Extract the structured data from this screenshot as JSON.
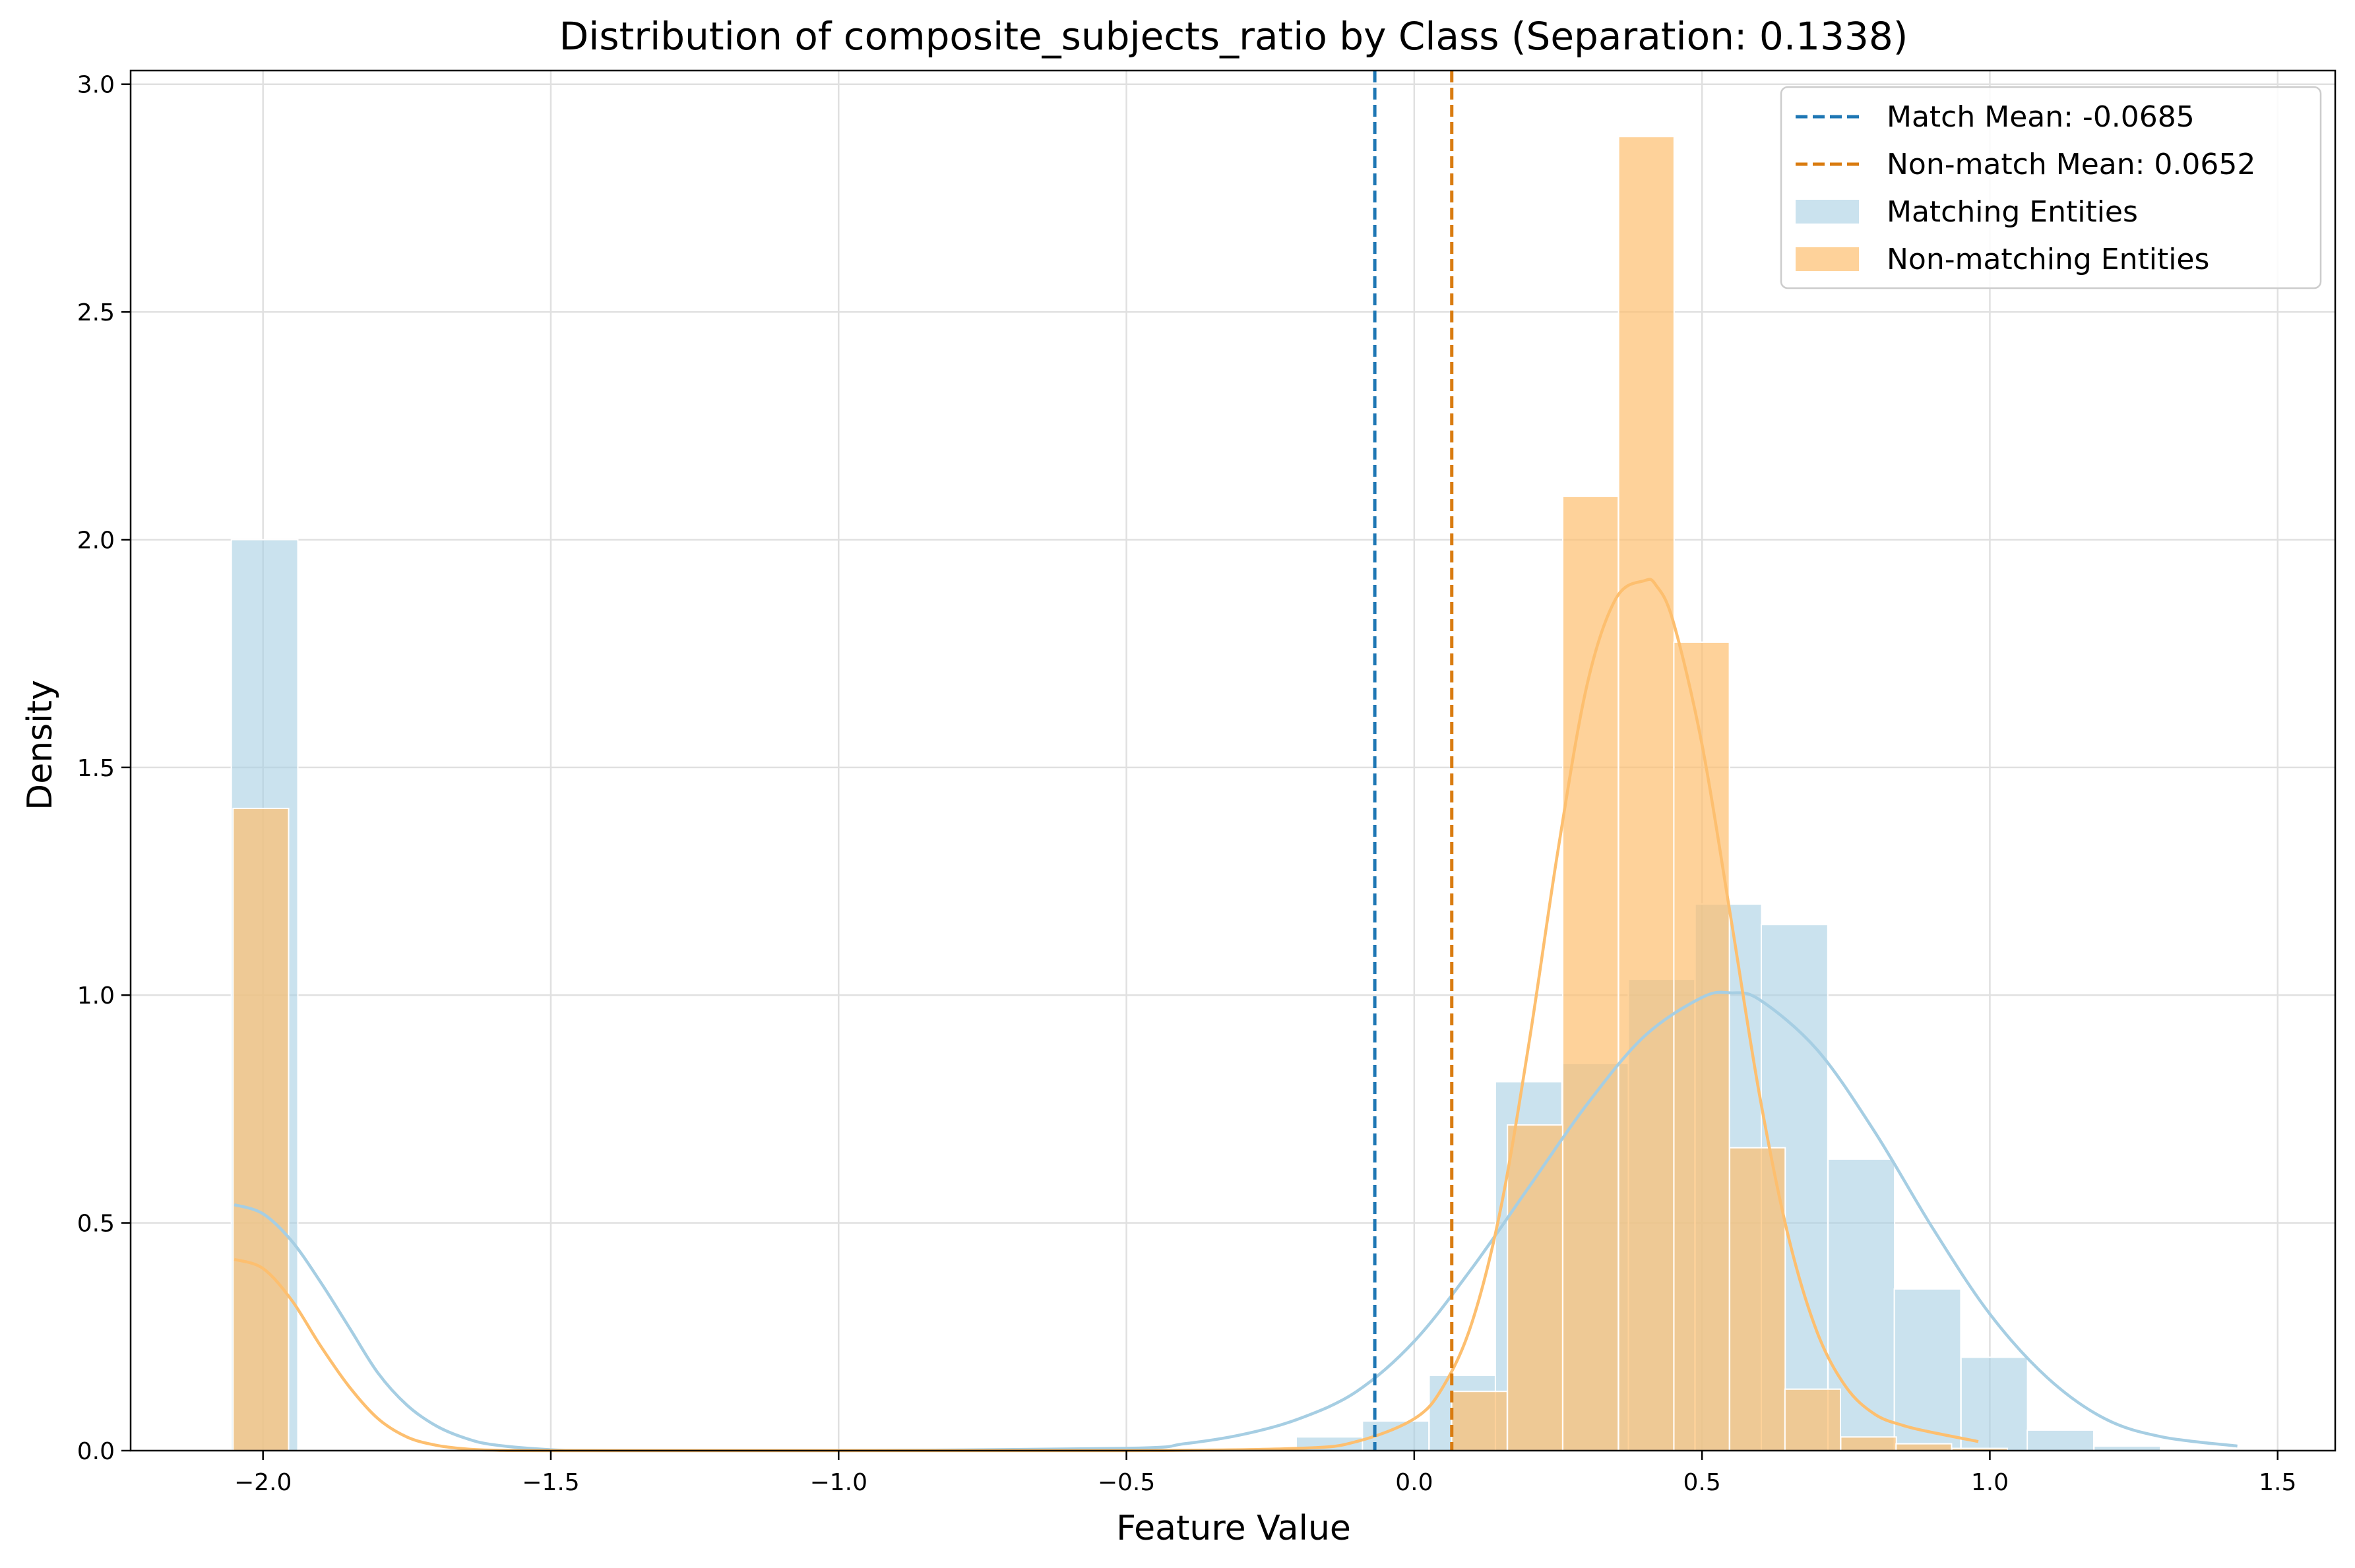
{
  "chart_data": {
    "type": "bar",
    "title": "Distribution of composite_subjects_ratio by Class (Separation: 0.1338)",
    "xlabel": "Feature Value",
    "ylabel": "Density",
    "xlim": [
      -2.23,
      1.6
    ],
    "ylim": [
      0,
      3.03
    ],
    "x_ticks": [
      -2.0,
      -1.5,
      -1.0,
      -0.5,
      0.0,
      0.5,
      1.0,
      1.5
    ],
    "x_tick_labels": [
      "−2.0",
      "−1.5",
      "−1.0",
      "−0.5",
      "0.0",
      "0.5",
      "1.0",
      "1.5"
    ],
    "y_ticks": [
      0.0,
      0.5,
      1.0,
      1.5,
      2.0,
      2.5,
      3.0
    ],
    "y_tick_labels": [
      "0.0",
      "0.5",
      "1.0",
      "1.5",
      "2.0",
      "2.5",
      "3.0"
    ],
    "grid": true,
    "legend_position": "top-right",
    "legend": [
      {
        "label": "Match Mean: -0.0685",
        "kind": "dashed-line",
        "color": "#1f77b4"
      },
      {
        "label": "Non-match Mean: 0.0652",
        "kind": "dashed-line",
        "color": "#d97b0f"
      },
      {
        "label": "Matching Entities",
        "kind": "patch",
        "color": "#a6cee3"
      },
      {
        "label": "Non-matching Entities",
        "kind": "patch",
        "color": "#fdbf6f"
      }
    ],
    "mean_lines": [
      {
        "name": "Match Mean",
        "x": -0.0685,
        "color": "#1f77b4"
      },
      {
        "name": "Non-match Mean",
        "x": 0.0652,
        "color": "#d97b0f"
      }
    ],
    "series": [
      {
        "name": "Matching Entities",
        "color": "#a6cee3",
        "bin_width": 0.1155,
        "bins": [
          {
            "x0": -2.055,
            "value": 2.0
          },
          {
            "x0": -0.205,
            "value": 0.03
          },
          {
            "x0": -0.09,
            "value": 0.065
          },
          {
            "x0": 0.026,
            "value": 0.165
          },
          {
            "x0": 0.141,
            "value": 0.81
          },
          {
            "x0": 0.257,
            "value": 0.85
          },
          {
            "x0": 0.372,
            "value": 1.035
          },
          {
            "x0": 0.488,
            "value": 1.2
          },
          {
            "x0": 0.603,
            "value": 1.155
          },
          {
            "x0": 0.719,
            "value": 0.64
          },
          {
            "x0": 0.834,
            "value": 0.355
          },
          {
            "x0": 0.95,
            "value": 0.205
          },
          {
            "x0": 1.065,
            "value": 0.045
          },
          {
            "x0": 1.181,
            "value": 0.01
          }
        ],
        "kde": {
          "x": [
            -2.05,
            -2.0,
            -1.95,
            -1.9,
            -1.85,
            -1.8,
            -1.75,
            -1.7,
            -1.65,
            -1.6,
            -1.5,
            -1.4,
            -1.0,
            -0.5,
            -0.4,
            -0.3,
            -0.2,
            -0.1,
            0.0,
            0.1,
            0.2,
            0.3,
            0.4,
            0.5,
            0.55,
            0.6,
            0.7,
            0.8,
            0.9,
            1.0,
            1.1,
            1.2,
            1.3,
            1.43
          ],
          "y": [
            0.54,
            0.52,
            0.46,
            0.37,
            0.27,
            0.17,
            0.1,
            0.055,
            0.028,
            0.013,
            0.002,
            0.0,
            0.0,
            0.005,
            0.015,
            0.035,
            0.07,
            0.13,
            0.24,
            0.4,
            0.58,
            0.76,
            0.91,
            0.995,
            1.005,
            0.99,
            0.88,
            0.7,
            0.49,
            0.3,
            0.16,
            0.07,
            0.03,
            0.01
          ]
        }
      },
      {
        "name": "Non-matching Entities",
        "color": "#fdbf6f",
        "bin_width": 0.0965,
        "bins": [
          {
            "x0": -2.052,
            "value": 1.41
          },
          {
            "x0": 0.065,
            "value": 0.13
          },
          {
            "x0": 0.162,
            "value": 0.715
          },
          {
            "x0": 0.258,
            "value": 2.095
          },
          {
            "x0": 0.355,
            "value": 2.885
          },
          {
            "x0": 0.451,
            "value": 1.775
          },
          {
            "x0": 0.548,
            "value": 0.665
          },
          {
            "x0": 0.644,
            "value": 0.135
          },
          {
            "x0": 0.741,
            "value": 0.03
          },
          {
            "x0": 0.837,
            "value": 0.015
          },
          {
            "x0": 0.934,
            "value": 0.005
          }
        ],
        "kde": {
          "x": [
            -2.05,
            -2.0,
            -1.95,
            -1.9,
            -1.85,
            -1.8,
            -1.75,
            -1.7,
            -1.65,
            -1.6,
            -1.5,
            -1.0,
            -0.5,
            -0.2,
            -0.1,
            0.0,
            0.05,
            0.1,
            0.15,
            0.2,
            0.25,
            0.3,
            0.35,
            0.4,
            0.42,
            0.45,
            0.5,
            0.55,
            0.6,
            0.65,
            0.7,
            0.75,
            0.8,
            0.85,
            0.9,
            0.98
          ],
          "y": [
            0.42,
            0.4,
            0.33,
            0.23,
            0.14,
            0.07,
            0.03,
            0.012,
            0.004,
            0.001,
            0.0,
            0.0,
            0.0,
            0.005,
            0.02,
            0.07,
            0.14,
            0.28,
            0.53,
            0.9,
            1.32,
            1.68,
            1.87,
            1.91,
            1.9,
            1.82,
            1.55,
            1.17,
            0.78,
            0.47,
            0.26,
            0.14,
            0.08,
            0.055,
            0.04,
            0.02
          ]
        }
      }
    ]
  }
}
